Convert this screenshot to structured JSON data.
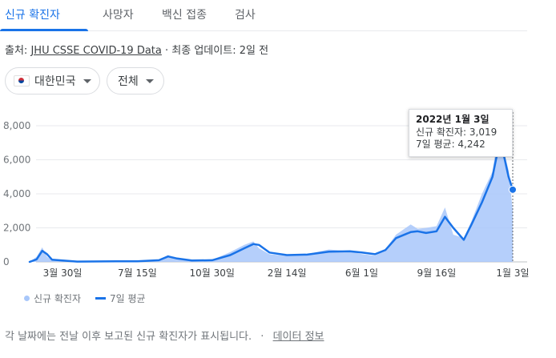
{
  "tabs": [
    "신규 확진자",
    "사망자",
    "백신 접종",
    "검사"
  ],
  "source": {
    "prefix": "출처:",
    "link": "JHU CSSE COVID-19 Data",
    "separator": "·",
    "updated": "최종 업데이트: 2일 전"
  },
  "filters": {
    "region": "대한민국",
    "range": "전체"
  },
  "icons": {
    "region_flag": "korea-flag-icon",
    "dropdown": "caret-down-icon"
  },
  "colors": {
    "accent": "#1a73e8",
    "bars": "#a8c7fa",
    "average_line": "#1a73e8"
  },
  "tooltip": {
    "title": "2022년 1월 3일",
    "line1": "신규 확진자: 3,019",
    "line2": "7일 평균: 4,242"
  },
  "legend": {
    "bars": "신규 확진자",
    "line": "7일 평균"
  },
  "footnote": {
    "text": "각 날짜에는 전날 이후 보고된 신규 확진자가 표시됩니다.",
    "separator": "·",
    "link": "데이터 정보"
  },
  "chart_data": {
    "type": "area",
    "title": "",
    "xlabel": "",
    "ylabel": "",
    "ylim": [
      0,
      8000
    ],
    "y_ticks": [
      "8,000",
      "6,000",
      "4,000",
      "2,000",
      "0"
    ],
    "y_tick_values": [
      8000,
      6000,
      4000,
      2000,
      0
    ],
    "x_ticks": [
      "3월 30일",
      "7월 15일",
      "10월 30일",
      "2월 14일",
      "6월 1일",
      "9월 16일",
      "1월 3일"
    ],
    "x_tick_dates": [
      "2020-03-30",
      "2020-07-15",
      "2020-10-30",
      "2021-02-14",
      "2021-06-01",
      "2021-09-16",
      "2022-01-03"
    ],
    "legend_position": "bottom",
    "grid": true,
    "highlight": {
      "date": "2022-01-03",
      "new_cases": 3019,
      "seven_day_average": 4242
    },
    "series": [
      {
        "name": "7일 평균",
        "points": [
          [
            "2020-02-12",
            0
          ],
          [
            "2020-02-22",
            150
          ],
          [
            "2020-03-01",
            650
          ],
          [
            "2020-03-08",
            450
          ],
          [
            "2020-03-15",
            130
          ],
          [
            "2020-03-30",
            80
          ],
          [
            "2020-04-20",
            20
          ],
          [
            "2020-06-15",
            40
          ],
          [
            "2020-07-15",
            40
          ],
          [
            "2020-08-15",
            100
          ],
          [
            "2020-08-28",
            320
          ],
          [
            "2020-09-10",
            200
          ],
          [
            "2020-10-01",
            80
          ],
          [
            "2020-10-30",
            100
          ],
          [
            "2020-11-25",
            400
          ],
          [
            "2020-12-15",
            800
          ],
          [
            "2020-12-28",
            1050
          ],
          [
            "2021-01-05",
            1000
          ],
          [
            "2021-01-20",
            550
          ],
          [
            "2021-02-14",
            400
          ],
          [
            "2021-03-15",
            430
          ],
          [
            "2021-04-15",
            600
          ],
          [
            "2021-05-15",
            620
          ],
          [
            "2021-06-01",
            550
          ],
          [
            "2021-06-20",
            450
          ],
          [
            "2021-07-05",
            700
          ],
          [
            "2021-07-20",
            1400
          ],
          [
            "2021-08-10",
            1750
          ],
          [
            "2021-08-20",
            1800
          ],
          [
            "2021-09-01",
            1700
          ],
          [
            "2021-09-16",
            1800
          ],
          [
            "2021-09-28",
            2650
          ],
          [
            "2021-10-10",
            2000
          ],
          [
            "2021-10-25",
            1300
          ],
          [
            "2021-11-05",
            2200
          ],
          [
            "2021-11-20",
            3500
          ],
          [
            "2021-12-05",
            5000
          ],
          [
            "2021-12-14",
            6800
          ],
          [
            "2021-12-20",
            6500
          ],
          [
            "2021-12-28",
            5000
          ],
          [
            "2022-01-03",
            4242
          ]
        ]
      },
      {
        "name": "신규 확진자",
        "points": [
          [
            "2020-02-12",
            0
          ],
          [
            "2020-02-22",
            300
          ],
          [
            "2020-03-01",
            850
          ],
          [
            "2020-03-08",
            300
          ],
          [
            "2020-03-15",
            100
          ],
          [
            "2020-03-30",
            100
          ],
          [
            "2020-04-20",
            10
          ],
          [
            "2020-06-15",
            50
          ],
          [
            "2020-07-15",
            40
          ],
          [
            "2020-08-15",
            120
          ],
          [
            "2020-08-28",
            400
          ],
          [
            "2020-09-10",
            150
          ],
          [
            "2020-10-01",
            70
          ],
          [
            "2020-10-30",
            120
          ],
          [
            "2020-11-25",
            580
          ],
          [
            "2020-12-15",
            1000
          ],
          [
            "2020-12-28",
            1200
          ],
          [
            "2021-01-05",
            800
          ],
          [
            "2021-01-20",
            450
          ],
          [
            "2021-02-14",
            350
          ],
          [
            "2021-03-15",
            460
          ],
          [
            "2021-04-15",
            730
          ],
          [
            "2021-05-15",
            620
          ],
          [
            "2021-06-01",
            460
          ],
          [
            "2021-06-20",
            360
          ],
          [
            "2021-07-05",
            750
          ],
          [
            "2021-07-20",
            1600
          ],
          [
            "2021-08-10",
            2200
          ],
          [
            "2021-08-20",
            1950
          ],
          [
            "2021-09-01",
            2000
          ],
          [
            "2021-09-16",
            2100
          ],
          [
            "2021-09-28",
            3200
          ],
          [
            "2021-10-10",
            1600
          ],
          [
            "2021-10-25",
            1400
          ],
          [
            "2021-11-05",
            2400
          ],
          [
            "2021-11-20",
            4000
          ],
          [
            "2021-12-05",
            5300
          ],
          [
            "2021-12-14",
            7800
          ],
          [
            "2021-12-20",
            6700
          ],
          [
            "2021-12-28",
            5400
          ],
          [
            "2022-01-03",
            3019
          ]
        ]
      }
    ]
  }
}
